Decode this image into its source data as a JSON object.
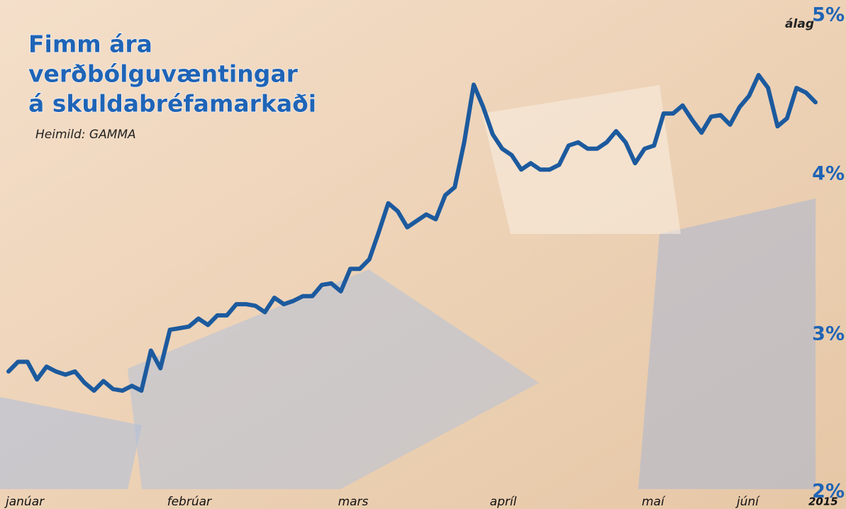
{
  "chart_data": {
    "type": "line",
    "title_lines": [
      "Fimm ára",
      "verðbólguvæntingar",
      "á skuldabréfamarkaði"
    ],
    "subtitle": "Heimild: GAMMA",
    "y_label": "álag",
    "year": "2015",
    "categories": [
      "janúar",
      null,
      null,
      null,
      null,
      null,
      null,
      null,
      null,
      null,
      null,
      null,
      null,
      null,
      null,
      null,
      null,
      "febrúar",
      null,
      null,
      null,
      null,
      null,
      null,
      null,
      null,
      null,
      null,
      null,
      null,
      null,
      null,
      null,
      null,
      null,
      "mars",
      null,
      null,
      null,
      null,
      null,
      null,
      null,
      null,
      null,
      null,
      null,
      null,
      null,
      null,
      null,
      "apríl",
      null,
      null,
      null,
      null,
      null,
      null,
      null,
      null,
      null,
      null,
      null,
      null,
      null,
      null,
      null,
      "maí",
      null,
      null,
      null,
      null,
      null,
      null,
      null,
      null,
      null,
      "júní",
      null,
      null,
      null,
      null,
      null,
      null,
      null,
      null
    ],
    "series": [
      {
        "color": "#1c5a9e",
        "values": [
          2.77,
          2.83,
          2.83,
          2.72,
          2.8,
          2.77,
          2.75,
          2.77,
          2.7,
          2.65,
          2.71,
          2.66,
          2.65,
          2.68,
          2.65,
          2.9,
          2.79,
          3.03,
          3.04,
          3.05,
          3.1,
          3.06,
          3.12,
          3.12,
          3.19,
          3.19,
          3.18,
          3.14,
          3.23,
          3.19,
          3.21,
          3.24,
          3.24,
          3.31,
          3.32,
          3.27,
          3.41,
          3.41,
          3.47,
          3.64,
          3.82,
          3.77,
          3.67,
          3.71,
          3.75,
          3.72,
          3.87,
          3.92,
          4.2,
          4.56,
          4.42,
          4.25,
          4.16,
          4.12,
          4.03,
          4.07,
          4.03,
          4.03,
          4.06,
          4.18,
          4.2,
          4.16,
          4.16,
          4.2,
          4.27,
          4.2,
          4.07,
          4.16,
          4.18,
          4.38,
          4.38,
          4.43,
          4.34,
          4.26,
          4.36,
          4.37,
          4.31,
          4.42,
          4.49,
          4.62,
          4.54,
          4.3,
          4.35,
          4.54,
          4.51,
          4.45
        ]
      }
    ],
    "ylim": [
      2,
      5
    ],
    "yticks": [
      {
        "value": 2,
        "label": "2%"
      },
      {
        "value": 3,
        "label": "3%"
      },
      {
        "value": 4,
        "label": "4%"
      },
      {
        "value": 5,
        "label": "5%"
      }
    ],
    "grid": false
  }
}
